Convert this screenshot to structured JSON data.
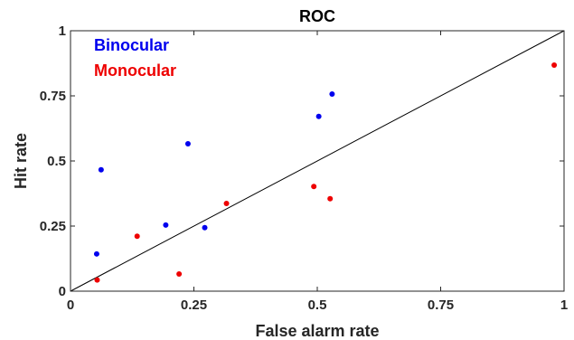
{
  "chart_data": {
    "type": "scatter",
    "title": "ROC",
    "xlabel": "False alarm rate",
    "ylabel": "Hit rate",
    "xlim": [
      0,
      1
    ],
    "ylim": [
      0,
      1
    ],
    "xticks": [
      "0",
      "0.25",
      "0.5",
      "0.75",
      "1"
    ],
    "yticks": [
      "0",
      "0.25",
      "0.5",
      "0.75",
      "1"
    ],
    "xtick_values": [
      0,
      0.25,
      0.5,
      0.75,
      1
    ],
    "ytick_values": [
      0,
      0.25,
      0.5,
      0.75,
      1
    ],
    "grid": false,
    "legend_placement": "top-left",
    "reference_line": {
      "from": [
        0,
        0
      ],
      "to": [
        1,
        1
      ],
      "color": "#000000"
    },
    "series": [
      {
        "name": "Binocular",
        "color": "#0000ee",
        "x": [
          0.053,
          0.062,
          0.193,
          0.238,
          0.272,
          0.503,
          0.53
        ],
        "y": [
          0.143,
          0.466,
          0.254,
          0.566,
          0.244,
          0.671,
          0.757
        ]
      },
      {
        "name": "Monocular",
        "color": "#ee0000",
        "x": [
          0.054,
          0.135,
          0.22,
          0.316,
          0.493,
          0.526,
          0.98
        ],
        "y": [
          0.043,
          0.211,
          0.066,
          0.337,
          0.402,
          0.355,
          0.868
        ]
      }
    ]
  }
}
